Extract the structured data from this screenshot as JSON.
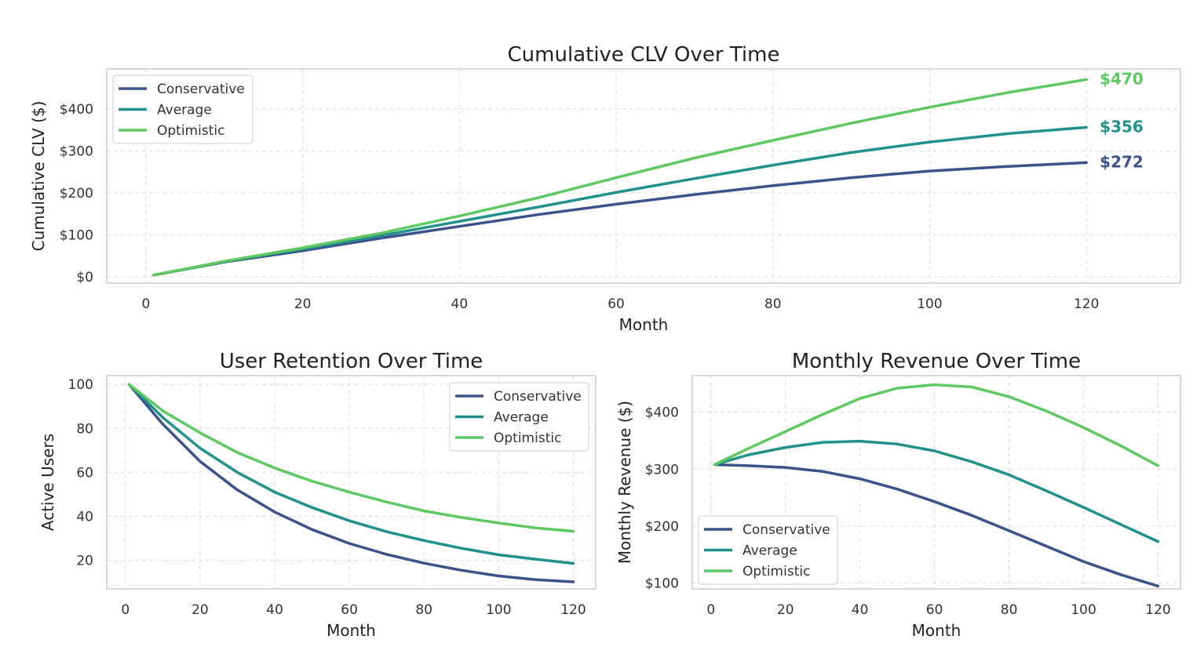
{
  "chart_data": [
    {
      "id": "clv",
      "type": "line",
      "title": "Cumulative CLV Over Time",
      "xlabel": "Month",
      "ylabel": "Cumulative CLV ($)",
      "xlim": [
        -5,
        132
      ],
      "ylim": [
        -15,
        495
      ],
      "xticks": [
        0,
        20,
        40,
        60,
        80,
        100,
        120
      ],
      "yticks": [
        0,
        100,
        200,
        300,
        400
      ],
      "ytick_labels": [
        "$0",
        "$100",
        "$200",
        "$300",
        "$400"
      ],
      "grid": true,
      "legend_position": "top-left",
      "series": [
        {
          "name": "Conservative",
          "color": "#3b528b",
          "x": [
            1,
            10,
            20,
            30,
            40,
            50,
            60,
            70,
            80,
            90,
            100,
            110,
            120
          ],
          "y": [
            4,
            35,
            62,
            92,
            120,
            148,
            173,
            196,
            217,
            236,
            252,
            263,
            272
          ],
          "end_label": "$272"
        },
        {
          "name": "Average",
          "color": "#21918c",
          "x": [
            1,
            10,
            20,
            30,
            40,
            50,
            60,
            70,
            80,
            90,
            100,
            110,
            120
          ],
          "y": [
            4,
            36,
            66,
            98,
            132,
            166,
            201,
            234,
            266,
            296,
            321,
            341,
            356
          ],
          "end_label": "$356"
        },
        {
          "name": "Optimistic",
          "color": "#5ec962",
          "x": [
            1,
            10,
            20,
            30,
            40,
            50,
            60,
            70,
            80,
            90,
            100,
            110,
            120
          ],
          "y": [
            4,
            37,
            69,
            104,
            145,
            188,
            236,
            283,
            325,
            366,
            404,
            439,
            470
          ],
          "end_label": "$470"
        }
      ]
    },
    {
      "id": "retention",
      "type": "line",
      "title": "User Retention Over Time",
      "xlabel": "Month",
      "ylabel": "Active Users",
      "xlim": [
        -5,
        126
      ],
      "ylim": [
        7,
        104
      ],
      "xticks": [
        0,
        20,
        40,
        60,
        80,
        100,
        120
      ],
      "yticks": [
        20,
        40,
        60,
        80,
        100
      ],
      "ytick_labels": [
        "20",
        "40",
        "60",
        "80",
        "100"
      ],
      "grid": true,
      "legend_position": "top-right",
      "series": [
        {
          "name": "Conservative",
          "color": "#3b528b",
          "x": [
            1,
            10,
            20,
            30,
            40,
            50,
            60,
            70,
            80,
            90,
            100,
            110,
            120
          ],
          "y": [
            100,
            82,
            65,
            52,
            42,
            34,
            27.7,
            22.7,
            18.7,
            15.5,
            12.9,
            11.2,
            10.2
          ]
        },
        {
          "name": "Average",
          "color": "#21918c",
          "x": [
            1,
            10,
            20,
            30,
            40,
            50,
            60,
            70,
            80,
            90,
            100,
            110,
            120
          ],
          "y": [
            100,
            85,
            71,
            60,
            51,
            44,
            38,
            33,
            29,
            25.5,
            22.5,
            20.5,
            18.6
          ]
        },
        {
          "name": "Optimistic",
          "color": "#5ec962",
          "x": [
            1,
            10,
            20,
            30,
            40,
            50,
            60,
            70,
            80,
            90,
            100,
            110,
            120
          ],
          "y": [
            100,
            88,
            78,
            69,
            62,
            56,
            51,
            46.5,
            42.5,
            39.5,
            37,
            34.7,
            33.2
          ]
        }
      ]
    },
    {
      "id": "revenue",
      "type": "line",
      "title": "Monthly Revenue Over Time",
      "xlabel": "Month",
      "ylabel": "Monthly Revenue ($)",
      "xlim": [
        -5,
        126
      ],
      "ylim": [
        90,
        464
      ],
      "xticks": [
        0,
        20,
        40,
        60,
        80,
        100,
        120
      ],
      "yticks": [
        100,
        200,
        300,
        400
      ],
      "ytick_labels": [
        "$100",
        "$200",
        "$300",
        "$400"
      ],
      "grid": true,
      "legend_position": "bottom-left",
      "series": [
        {
          "name": "Conservative",
          "color": "#3b528b",
          "x": [
            1,
            10,
            20,
            30,
            40,
            50,
            60,
            70,
            80,
            90,
            100,
            110,
            120
          ],
          "y": [
            308,
            306,
            303,
            296,
            283,
            265,
            243,
            219,
            192,
            165,
            138,
            115,
            95
          ]
        },
        {
          "name": "Average",
          "color": "#21918c",
          "x": [
            1,
            10,
            20,
            30,
            40,
            50,
            60,
            70,
            80,
            90,
            100,
            110,
            120
          ],
          "y": [
            308,
            325,
            338,
            347,
            349,
            344,
            332,
            313,
            290,
            262,
            233,
            203,
            173
          ]
        },
        {
          "name": "Optimistic",
          "color": "#5ec962",
          "x": [
            1,
            10,
            20,
            30,
            40,
            50,
            60,
            70,
            80,
            90,
            100,
            110,
            120
          ],
          "y": [
            308,
            336,
            366,
            396,
            424,
            442,
            448,
            444,
            427,
            402,
            373,
            341,
            306
          ]
        }
      ]
    }
  ]
}
